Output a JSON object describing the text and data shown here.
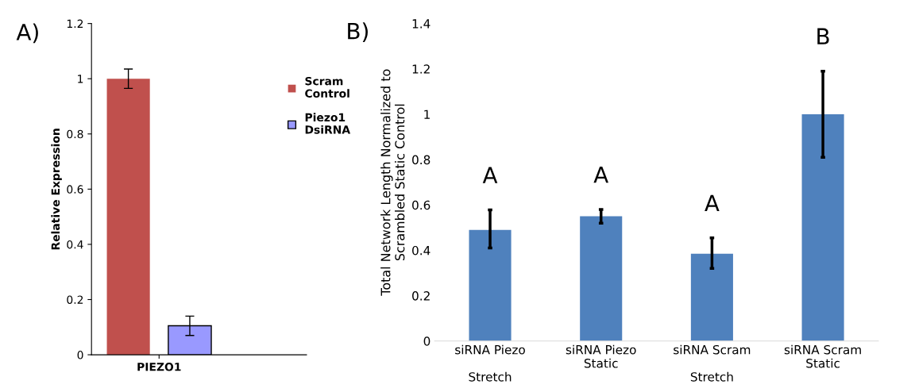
{
  "chart_data": [
    {
      "type": "bar",
      "title": "A)",
      "ylabel": "Relative Expression",
      "categories": [
        "PIEZO1"
      ],
      "series": [
        {
          "name": "Scram\nControl",
          "color": "#c0504d",
          "values": [
            1.0
          ],
          "errors": [
            0.035
          ]
        },
        {
          "name": "Piezo1\nDsiRNA",
          "color": "#9999ff",
          "values": [
            0.105
          ],
          "errors": [
            0.035
          ]
        }
      ],
      "ylim": [
        0,
        1.2
      ],
      "yticks": [
        0,
        0.2,
        0.4,
        0.6,
        0.8,
        1,
        1.2
      ],
      "legend": "right",
      "grid": false
    },
    {
      "type": "bar",
      "title": "B)",
      "ylabel": "Total Network Length Normalized to\nScrambled Static Control",
      "categories": [
        "siRNA Piezo\n\nStretch",
        "siRNA Piezo\nStatic",
        "siRNA Scram\n\nStretch",
        "siRNA Scram\nStatic"
      ],
      "series": [
        {
          "color": "#4f81bd",
          "values": [
            0.49,
            0.55,
            0.385,
            1.0
          ],
          "errors": [
            [
              0.41,
              0.578
            ],
            [
              0.52,
              0.58
            ],
            [
              0.32,
              0.455
            ],
            [
              0.81,
              1.19
            ]
          ]
        }
      ],
      "ylim": [
        0,
        1.4
      ],
      "yticks": [
        0,
        0.2,
        0.4,
        0.6,
        0.8,
        1,
        1.2,
        1.4
      ],
      "grid": false,
      "annotations": [
        "A",
        "A",
        "A",
        "B"
      ]
    }
  ]
}
